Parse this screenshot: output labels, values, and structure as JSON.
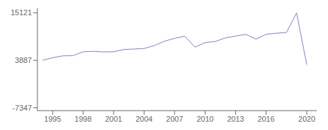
{
  "chart_data": {
    "type": "line",
    "x": [
      1994,
      1995,
      1996,
      1997,
      1998,
      1999,
      2000,
      2001,
      2002,
      2003,
      2004,
      2005,
      2006,
      2007,
      2008,
      2009,
      2010,
      2011,
      2012,
      2013,
      2014,
      2015,
      2016,
      2017,
      2018,
      2019,
      2020
    ],
    "values": [
      3887,
      4488,
      4944,
      4977,
      5898,
      6026,
      5872,
      5908,
      6429,
      6554,
      6678,
      7369,
      8395,
      9091,
      9592,
      7011,
      8073,
      8339,
      9188,
      9617,
      10044,
      8904,
      10044,
      10285,
      10472,
      15121,
      2867
    ],
    "color": "#7b7fc4",
    "xlim": [
      1993.5,
      2021.0
    ],
    "xticks": [
      1995,
      1998,
      2001,
      2004,
      2007,
      2010,
      2013,
      2016,
      2020
    ],
    "ylim": [
      -8034,
      16200
    ],
    "yticks": [
      -7347,
      3887,
      15121
    ]
  }
}
